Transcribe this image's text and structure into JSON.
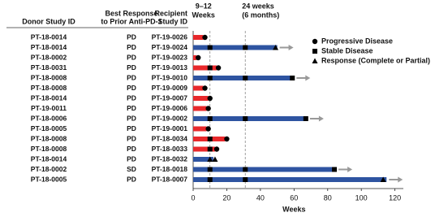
{
  "chart_data": {
    "type": "swimmer",
    "columns": [
      [
        "Donor Study ID"
      ],
      [
        "Best Response",
        "to Prior Anti-PD-1"
      ],
      [
        "Recipient",
        "Study ID"
      ]
    ],
    "xlabel": "Weeks",
    "xlim": [
      0,
      125
    ],
    "xticks": [
      0,
      20,
      40,
      60,
      80,
      100,
      120
    ],
    "reference_lines": [
      {
        "value": 10,
        "label": [
          "9–12",
          "Weeks"
        ]
      },
      {
        "value": 31,
        "label": [
          "24 weeks",
          "(6 months)"
        ]
      }
    ],
    "legend": [
      {
        "marker": "circle",
        "name": "Progressive Disease"
      },
      {
        "marker": "square",
        "name": "Stable Disease"
      },
      {
        "marker": "triangle",
        "name": "Response (Complete or Partial)"
      }
    ],
    "arrow_color": "#999999",
    "rows": [
      {
        "donor": "PT-18-0014",
        "response": "PD",
        "recipient": "PT-19-0026",
        "duration": 6,
        "color": "#e8282b",
        "ongoing": false,
        "events": [
          {
            "marker": "circle",
            "week": 7
          }
        ]
      },
      {
        "donor": "PT-18-0014",
        "response": "PD",
        "recipient": "PT-19-0024",
        "duration": 50,
        "color": "#2e54a1",
        "ongoing": true,
        "events": [
          {
            "marker": "square",
            "week": 10
          },
          {
            "marker": "square",
            "week": 31
          },
          {
            "marker": "triangle",
            "week": 49
          }
        ]
      },
      {
        "donor": "PT-18-0002",
        "response": "PD",
        "recipient": "PT-19-0023",
        "duration": 2,
        "color": "#e8282b",
        "ongoing": false,
        "events": [
          {
            "marker": "circle",
            "week": 3
          }
        ]
      },
      {
        "donor": "PT-18-0031",
        "response": "PD",
        "recipient": "PT-19-0013",
        "duration": 14,
        "color": "#e8282b",
        "ongoing": false,
        "events": [
          {
            "marker": "square",
            "week": 10
          },
          {
            "marker": "circle",
            "week": 15
          }
        ]
      },
      {
        "donor": "PT-18-0008",
        "response": "PD",
        "recipient": "PT-19-0010",
        "duration": 60,
        "color": "#2e54a1",
        "ongoing": true,
        "events": [
          {
            "marker": "square",
            "week": 10
          },
          {
            "marker": "square",
            "week": 31
          },
          {
            "marker": "square",
            "week": 59
          }
        ]
      },
      {
        "donor": "PT-18-0008",
        "response": "PD",
        "recipient": "PT-19-0009",
        "duration": 6,
        "color": "#e8282b",
        "ongoing": false,
        "events": [
          {
            "marker": "circle",
            "week": 7
          }
        ]
      },
      {
        "donor": "PT-18-0014",
        "response": "PD",
        "recipient": "PT-19-0007",
        "duration": 9,
        "color": "#e8282b",
        "ongoing": false,
        "events": [
          {
            "marker": "circle",
            "week": 10
          }
        ]
      },
      {
        "donor": "PT-19-0011",
        "response": "PD",
        "recipient": "PT-19-0006",
        "duration": 8,
        "color": "#e8282b",
        "ongoing": false,
        "events": [
          {
            "marker": "circle",
            "week": 9
          }
        ]
      },
      {
        "donor": "PT-18-0006",
        "response": "PD",
        "recipient": "PT-19-0002",
        "duration": 68,
        "color": "#2e54a1",
        "ongoing": true,
        "events": [
          {
            "marker": "square",
            "week": 10
          },
          {
            "marker": "square",
            "week": 31
          },
          {
            "marker": "square",
            "week": 67
          }
        ]
      },
      {
        "donor": "PT-18-0005",
        "response": "PD",
        "recipient": "PT-19-0001",
        "duration": 8,
        "color": "#e8282b",
        "ongoing": false,
        "events": [
          {
            "marker": "circle",
            "week": 9
          }
        ]
      },
      {
        "donor": "PT-18-0008",
        "response": "PD",
        "recipient": "PT-18-0034",
        "duration": 19,
        "color": "#e8282b",
        "ongoing": false,
        "events": [
          {
            "marker": "square",
            "week": 10
          },
          {
            "marker": "circle",
            "week": 20
          }
        ]
      },
      {
        "donor": "PT-18-0008",
        "response": "PD",
        "recipient": "PT-18-0033",
        "duration": 13,
        "color": "#e8282b",
        "ongoing": false,
        "events": [
          {
            "marker": "square",
            "week": 10
          },
          {
            "marker": "circle",
            "week": 14
          }
        ]
      },
      {
        "donor": "PT-18-0014",
        "response": "PD",
        "recipient": "PT-18-0032",
        "duration": 12,
        "color": "#2e54a1",
        "ongoing": false,
        "events": [
          {
            "marker": "triangle",
            "week": 10
          },
          {
            "marker": "triangle",
            "week": 13
          }
        ]
      },
      {
        "donor": "PT-18-0002",
        "response": "SD",
        "recipient": "PT-18-0018",
        "duration": 85,
        "color": "#2e54a1",
        "ongoing": true,
        "events": [
          {
            "marker": "square",
            "week": 10
          },
          {
            "marker": "square",
            "week": 31
          },
          {
            "marker": "square",
            "week": 84
          }
        ]
      },
      {
        "donor": "PT-18-0005",
        "response": "PD",
        "recipient": "PT-18-0007",
        "duration": 115,
        "color": "#2e54a1",
        "ongoing": true,
        "events": [
          {
            "marker": "square",
            "week": 10
          },
          {
            "marker": "square",
            "week": 31
          },
          {
            "marker": "triangle",
            "week": 113
          }
        ]
      }
    ]
  }
}
